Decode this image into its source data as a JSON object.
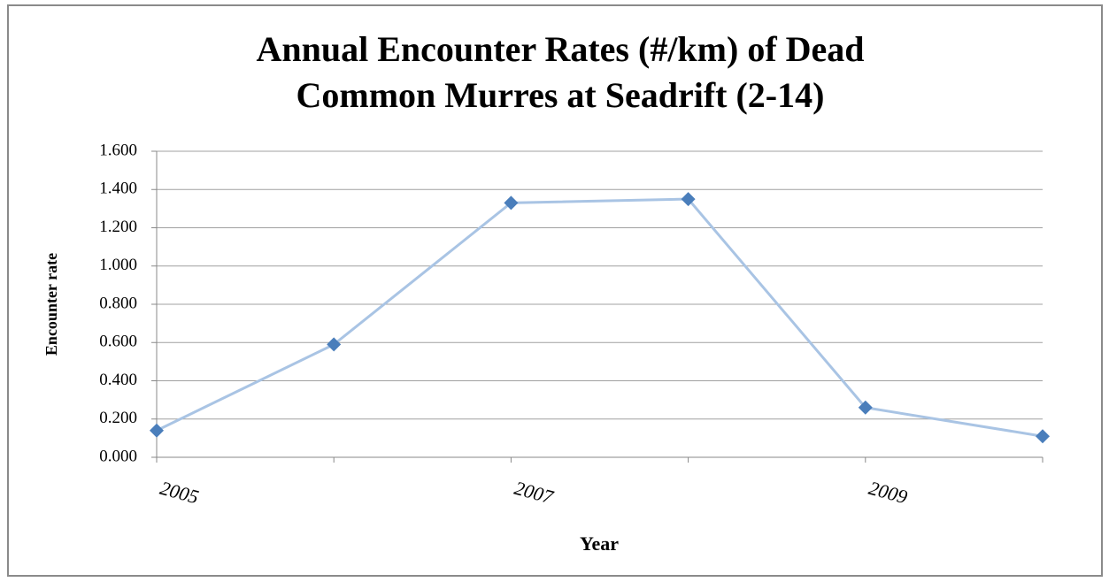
{
  "chart_data": {
    "type": "line",
    "title": [
      "Annual Encounter Rates (#/km) of Dead",
      "Common Murres at Seadrift (2-14)"
    ],
    "x_label": "Year",
    "y_label": "Encounter rate",
    "categories": [
      "2005",
      null,
      "2007",
      null,
      "2009",
      null
    ],
    "series": [
      {
        "name": "Encounter rate",
        "color": "#4a7ebb",
        "line_color": "#a9c4e4",
        "values": [
          0.14,
          0.59,
          1.33,
          1.35,
          0.26,
          0.11
        ]
      }
    ],
    "ylim": [
      0,
      1.6
    ],
    "yticks": [
      {
        "value": 0,
        "label": "0.000"
      },
      {
        "value": 0.2,
        "label": "0.200"
      },
      {
        "value": 0.4,
        "label": "0.400"
      },
      {
        "value": 0.6,
        "label": "0.600"
      },
      {
        "value": 0.8,
        "label": "0.800"
      },
      {
        "value": 1.0,
        "label": "1.000"
      },
      {
        "value": 1.2,
        "label": "1.200"
      },
      {
        "value": 1.4,
        "label": "1.400"
      },
      {
        "value": 1.6,
        "label": "1.600"
      }
    ],
    "grid": true,
    "legend": false
  }
}
